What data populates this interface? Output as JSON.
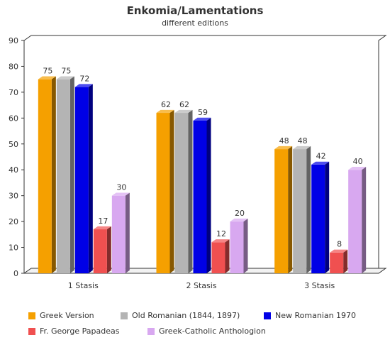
{
  "chart_data": {
    "type": "bar",
    "title": "Enkomia/Lamentations",
    "subtitle": "different editions",
    "categories": [
      "1 Stasis",
      "2 Stasis",
      "3 Stasis"
    ],
    "series": [
      {
        "name": "Greek Version",
        "values": [
          75,
          62,
          48
        ],
        "color": "#f5a000"
      },
      {
        "name": "Old Romanian (1844, 1897)",
        "values": [
          75,
          62,
          48
        ],
        "color": "#b4b4b4"
      },
      {
        "name": "New Romanian 1970",
        "values": [
          72,
          59,
          42
        ],
        "color": "#0000e6"
      },
      {
        "name": "Fr. George Papadeas",
        "values": [
          17,
          12,
          8
        ],
        "color": "#f05050"
      },
      {
        "name": "Greek-Catholic Anthologion",
        "values": [
          30,
          20,
          40
        ],
        "color": "#d8a8f0"
      }
    ],
    "ylim": [
      0,
      90
    ],
    "yticks": [
      0,
      10,
      20,
      30,
      40,
      50,
      60,
      70,
      80,
      90
    ],
    "grid": false,
    "legend_position": "bottom"
  }
}
